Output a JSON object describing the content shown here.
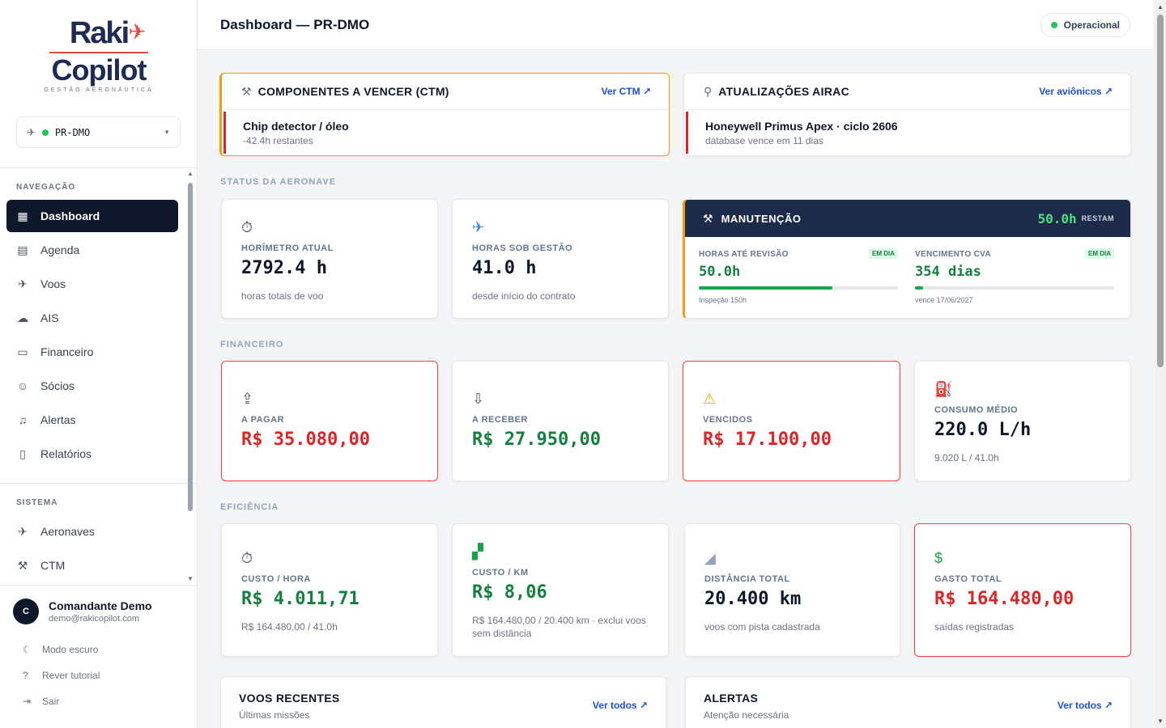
{
  "brand": {
    "line1": "Raki",
    "line2": "Copilot",
    "tagline": "GESTÃO AERONÁUTICA"
  },
  "aircraft_selector": {
    "value": "PR-DMO"
  },
  "nav": {
    "section": "NAVEGAÇÃO",
    "items": [
      {
        "label": "Dashboard",
        "icon": "grid-icon"
      },
      {
        "label": "Agenda",
        "icon": "calendar-icon"
      },
      {
        "label": "Voos",
        "icon": "plane-icon"
      },
      {
        "label": "AIS",
        "icon": "weather-icon"
      },
      {
        "label": "Financeiro",
        "icon": "money-icon"
      },
      {
        "label": "Sócios",
        "icon": "users-icon"
      },
      {
        "label": "Alertas",
        "icon": "bell-icon"
      },
      {
        "label": "Relatórios",
        "icon": "report-icon"
      }
    ]
  },
  "system": {
    "section": "SISTEMA",
    "items": [
      {
        "label": "Aeronaves",
        "icon": "plane-icon"
      },
      {
        "label": "CTM",
        "icon": "wrench-icon"
      }
    ]
  },
  "user": {
    "initial": "C",
    "name": "Comandante Demo",
    "email": "demo@rakicopilot.com"
  },
  "footer_links": {
    "dark": "Modo escuro",
    "tutorial": "Rever tutorial",
    "logout": "Sair"
  },
  "header": {
    "title": "Dashboard — PR-DMO",
    "status": "Operacional"
  },
  "ctm": {
    "title": "COMPONENTES A VENCER (CTM)",
    "link": "Ver CTM ↗",
    "item_title": "Chip detector / óleo",
    "item_sub": "-42.4h restantes"
  },
  "airac": {
    "title": "ATUALIZAÇÕES AIRAC",
    "link": "Ver aviônicos ↗",
    "item_title": "Honeywell Primus Apex · ciclo 2606",
    "item_sub": "database vence em 11 dias"
  },
  "sections": {
    "status": "STATUS DA AERONAVE",
    "finance": "FINANCEIRO",
    "efficiency": "EFICIÊNCIA"
  },
  "status_cards": {
    "horimetro": {
      "label": "HORÍMETRO ATUAL",
      "value": "2792.4 h",
      "sub": "horas totais de voo"
    },
    "horas_gestao": {
      "label": "HORAS SOB GESTÃO",
      "value": "41.0 h",
      "sub": "desde início do contrato"
    }
  },
  "maintenance": {
    "title": "MANUTENÇÃO",
    "value": "50.0h",
    "value_suffix": "RESTAM",
    "revisao": {
      "label": "HORAS ATÉ REVISÃO",
      "badge": "EM DIA",
      "value": "50.0h",
      "note": "Inspeção 150h",
      "progress": 0.67
    },
    "cva": {
      "label": "VENCIMENTO CVA",
      "badge": "EM DIA",
      "value": "354 dias",
      "note": "vence 17/06/2027",
      "progress": 0.04
    }
  },
  "finance": {
    "pagar": {
      "label": "A PAGAR",
      "value": "R$ 35.080,00"
    },
    "receber": {
      "label": "A RECEBER",
      "value": "R$ 27.950,00"
    },
    "vencidos": {
      "label": "VENCIDOS",
      "value": "R$ 17.100,00"
    },
    "consumo": {
      "label": "CONSUMO MÉDIO",
      "value": "220.0 L/h",
      "sub": "9.020 L / 41.0h"
    }
  },
  "efficiency": {
    "custo_hora": {
      "label": "CUSTO / HORA",
      "value": "R$ 4.011,71",
      "sub": "R$ 164.480,00 / 41.0h"
    },
    "custo_km": {
      "label": "CUSTO / KM",
      "value": "R$ 8,06",
      "sub": "R$ 164.480,00 / 20.400 km · exclui voos sem distância"
    },
    "distancia": {
      "label": "DISTÂNCIA TOTAL",
      "value": "20.400 km",
      "sub": "voos com pista cadastrada"
    },
    "gasto": {
      "label": "GASTO TOTAL",
      "value": "R$ 164.480,00",
      "sub": "saídas registradas"
    }
  },
  "recent_flights": {
    "title": "VOOS RECENTES",
    "sub": "Últimas missões",
    "link": "Ver todos ↗"
  },
  "alerts": {
    "title": "ALERTAS",
    "sub": "Atenção necessária",
    "link": "Ver todos ↗"
  },
  "colors": {
    "navy": "#1e2a4a",
    "danger": "#dc2626",
    "success": "#15803d",
    "warning": "#f59e0b",
    "link": "#1d4ed8"
  }
}
